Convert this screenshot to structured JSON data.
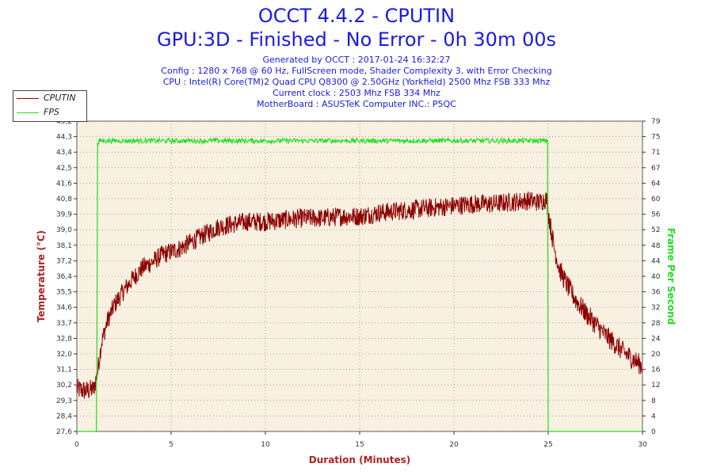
{
  "header": {
    "title": "OCCT 4.4.2 - CPUTIN",
    "subtitle": "GPU:3D - Finished - No Error - 0h 30m 00s",
    "info_lines": [
      "Generated by OCCT : 2017-01-24 16:32:27",
      "Config : 1280 x 768 @ 60 Hz, FullScreen mode, Shader Complexity 3, with Error Checking",
      "CPU : Intel(R) Core(TM)2 Quad CPU Q8300 @ 2.50GHz (Yorkfield) 2500 Mhz FSB 333 Mhz",
      "Current clock : 2503 Mhz FSB 334 Mhz",
      "MotherBoard : ASUSTeK Computer INC.: P5QC"
    ]
  },
  "colors": {
    "title": "#1a1ae0",
    "cputin": "#8b0000",
    "fps": "#22dd22",
    "plot_bg": "#f8f0e0",
    "grid": "#555555",
    "axis_label": "#b22222",
    "right_axis_label": "#22dd22"
  },
  "chart_data": {
    "type": "line",
    "xlabel": "Duration (Minutes)",
    "ylabel": "Temperature (°C)",
    "ylabel_right": "Frame Per Second",
    "xlim": [
      0,
      30
    ],
    "ylim": [
      27.6,
      45.2
    ],
    "ylim_right": [
      0,
      79
    ],
    "x_ticks": [
      "0",
      "5",
      "10",
      "15",
      "20",
      "25",
      "30"
    ],
    "y_ticks": [
      "27,6",
      "28,4",
      "29,3",
      "30,2",
      "31,1",
      "32,0",
      "32,8",
      "33,7",
      "34,6",
      "35,5",
      "36,4",
      "37,2",
      "38,1",
      "39,0",
      "39,9",
      "40,8",
      "41,6",
      "42,5",
      "43,4",
      "44,3",
      "45,2"
    ],
    "y_ticks_right": [
      "0",
      "4",
      "8",
      "12",
      "16",
      "20",
      "24",
      "28",
      "32",
      "36",
      "40",
      "44",
      "48",
      "52",
      "56",
      "60",
      "64",
      "67",
      "71",
      "75",
      "79"
    ],
    "grid": true,
    "legend": "top-left outside",
    "series": [
      {
        "name": "CPUTIN",
        "axis": "left",
        "x": [
          0,
          0.5,
          0.9,
          1.1,
          1.3,
          1.6,
          2.0,
          2.5,
          3.0,
          3.5,
          4.0,
          4.5,
          5.0,
          5.5,
          6.0,
          6.5,
          7.0,
          7.5,
          8.0,
          8.5,
          9.0,
          10.0,
          11.0,
          12.0,
          13.0,
          14.0,
          15.0,
          16.0,
          17.0,
          18.0,
          19.0,
          20.0,
          21.0,
          22.0,
          23.0,
          24.0,
          24.5,
          24.9,
          25.1,
          25.3,
          25.6,
          26.0,
          26.5,
          27.0,
          27.5,
          28.0,
          28.5,
          29.0,
          29.5,
          30.0
        ],
        "values": [
          30.0,
          29.9,
          30.0,
          31.0,
          32.6,
          33.8,
          34.8,
          35.6,
          36.3,
          36.9,
          37.2,
          37.6,
          37.8,
          38.0,
          38.3,
          38.6,
          38.9,
          39.2,
          39.3,
          39.4,
          39.5,
          39.5,
          39.6,
          39.7,
          39.7,
          39.8,
          39.8,
          40.0,
          40.1,
          40.2,
          40.3,
          40.4,
          40.5,
          40.5,
          40.6,
          40.7,
          40.6,
          40.8,
          39.4,
          38.1,
          36.8,
          35.9,
          35.0,
          34.3,
          33.7,
          33.1,
          32.6,
          32.1,
          31.7,
          31.3
        ]
      },
      {
        "name": "FPS",
        "axis": "right",
        "x": [
          0,
          1.05,
          1.1,
          1.2,
          24.98,
          25.0,
          30.0
        ],
        "values": [
          0,
          0,
          73,
          74,
          74,
          0,
          0
        ]
      }
    ]
  }
}
